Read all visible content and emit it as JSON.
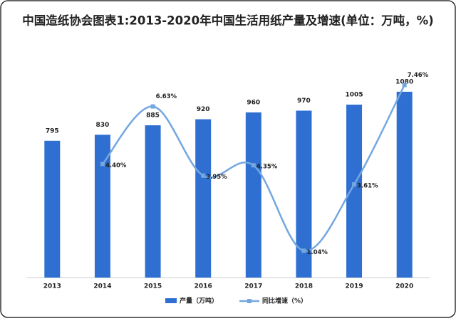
{
  "chart_data": {
    "type": "bar-line",
    "title": "中国造纸协会图表1:2013-2020年中国生活用纸产量及增速(单位：万吨，%)",
    "categories": [
      "2013",
      "2014",
      "2015",
      "2016",
      "2017",
      "2018",
      "2019",
      "2020"
    ],
    "series": [
      {
        "name": "产量（万吨）",
        "type": "bar",
        "color": "#2e6fd1",
        "values": [
          795,
          830,
          885,
          920,
          960,
          970,
          1005,
          1080
        ]
      },
      {
        "name": "同比增速（%）",
        "type": "line",
        "axis": "y2",
        "color": "#74a7e0",
        "values": [
          null,
          4.4,
          6.63,
          3.95,
          4.35,
          1.04,
          3.61,
          7.46
        ],
        "value_labels": [
          null,
          "4.40%",
          "6.63%",
          "3.95%",
          "4.35%",
          "1.04%",
          "3.61%",
          "7.46%"
        ]
      }
    ],
    "ylim": [
      0,
      1125
    ],
    "y2lim": [
      0,
      7.5
    ],
    "legend": "bottom"
  }
}
